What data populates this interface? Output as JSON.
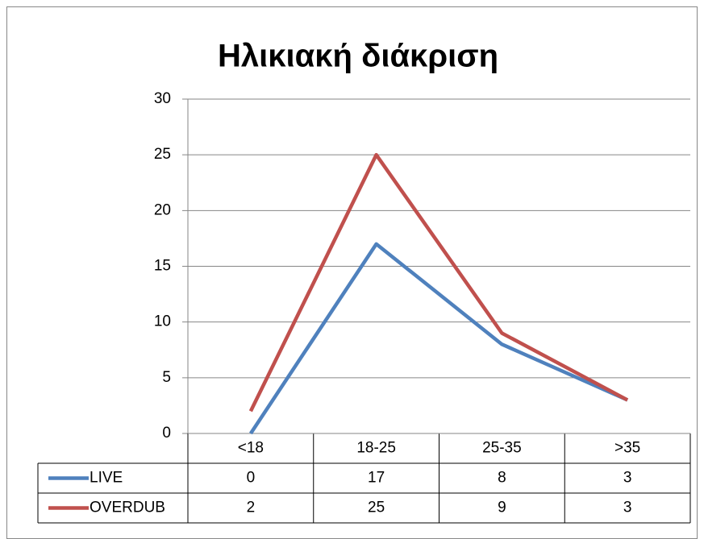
{
  "chart_data": {
    "type": "line",
    "title": "Ηλικιακή διάκριση",
    "categories": [
      "<18",
      "18-25",
      "25-35",
      ">35"
    ],
    "series": [
      {
        "name": "LIVE",
        "color": "#4f81bd",
        "values": [
          0,
          17,
          8,
          3
        ]
      },
      {
        "name": "OVERDUB",
        "color": "#c0504d",
        "values": [
          2,
          25,
          9,
          3
        ]
      }
    ],
    "ylim": [
      0,
      30
    ],
    "yticks": [
      0,
      5,
      10,
      15,
      20,
      25,
      30
    ],
    "grid": true,
    "data_table": true
  }
}
